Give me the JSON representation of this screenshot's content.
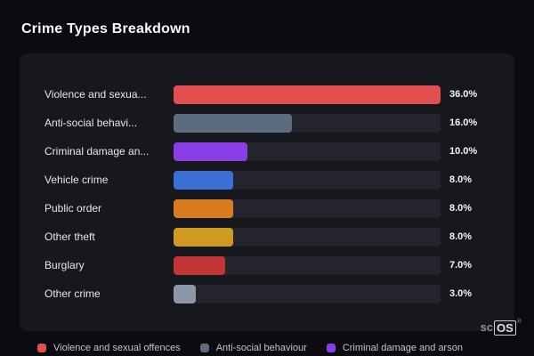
{
  "title": "Crime Types Breakdown",
  "chart_data": {
    "type": "bar",
    "orientation": "horizontal",
    "title": "Crime Types Breakdown",
    "categories": [
      "Violence and sexua...",
      "Anti-social behavi...",
      "Criminal damage an...",
      "Vehicle crime",
      "Public order",
      "Other theft",
      "Burglary",
      "Other crime"
    ],
    "values": [
      36.0,
      16.0,
      10.0,
      8.0,
      8.0,
      8.0,
      7.0,
      3.0
    ],
    "value_labels": [
      "36.0%",
      "16.0%",
      "10.0%",
      "8.0%",
      "8.0%",
      "8.0%",
      "7.0%",
      "3.0%"
    ],
    "colors": [
      "#e14f4f",
      "#5d6b7e",
      "#8a3fe6",
      "#3a6fd4",
      "#d97c1f",
      "#cf9a1f",
      "#c23535",
      "#8e97a7"
    ],
    "xlim": [
      0,
      36
    ],
    "bars_scaled_to_max": true,
    "grid": false,
    "legend_position": "bottom",
    "legend": [
      {
        "label": "Violence and sexual offences",
        "color": "#e14f4f"
      },
      {
        "label": "Anti-social behaviour",
        "color": "#5d6b7e"
      },
      {
        "label": "Criminal damage and arson",
        "color": "#8a3fe6"
      }
    ]
  },
  "watermark": {
    "prefix": "sc",
    "box": "OS",
    "reg": "®"
  }
}
